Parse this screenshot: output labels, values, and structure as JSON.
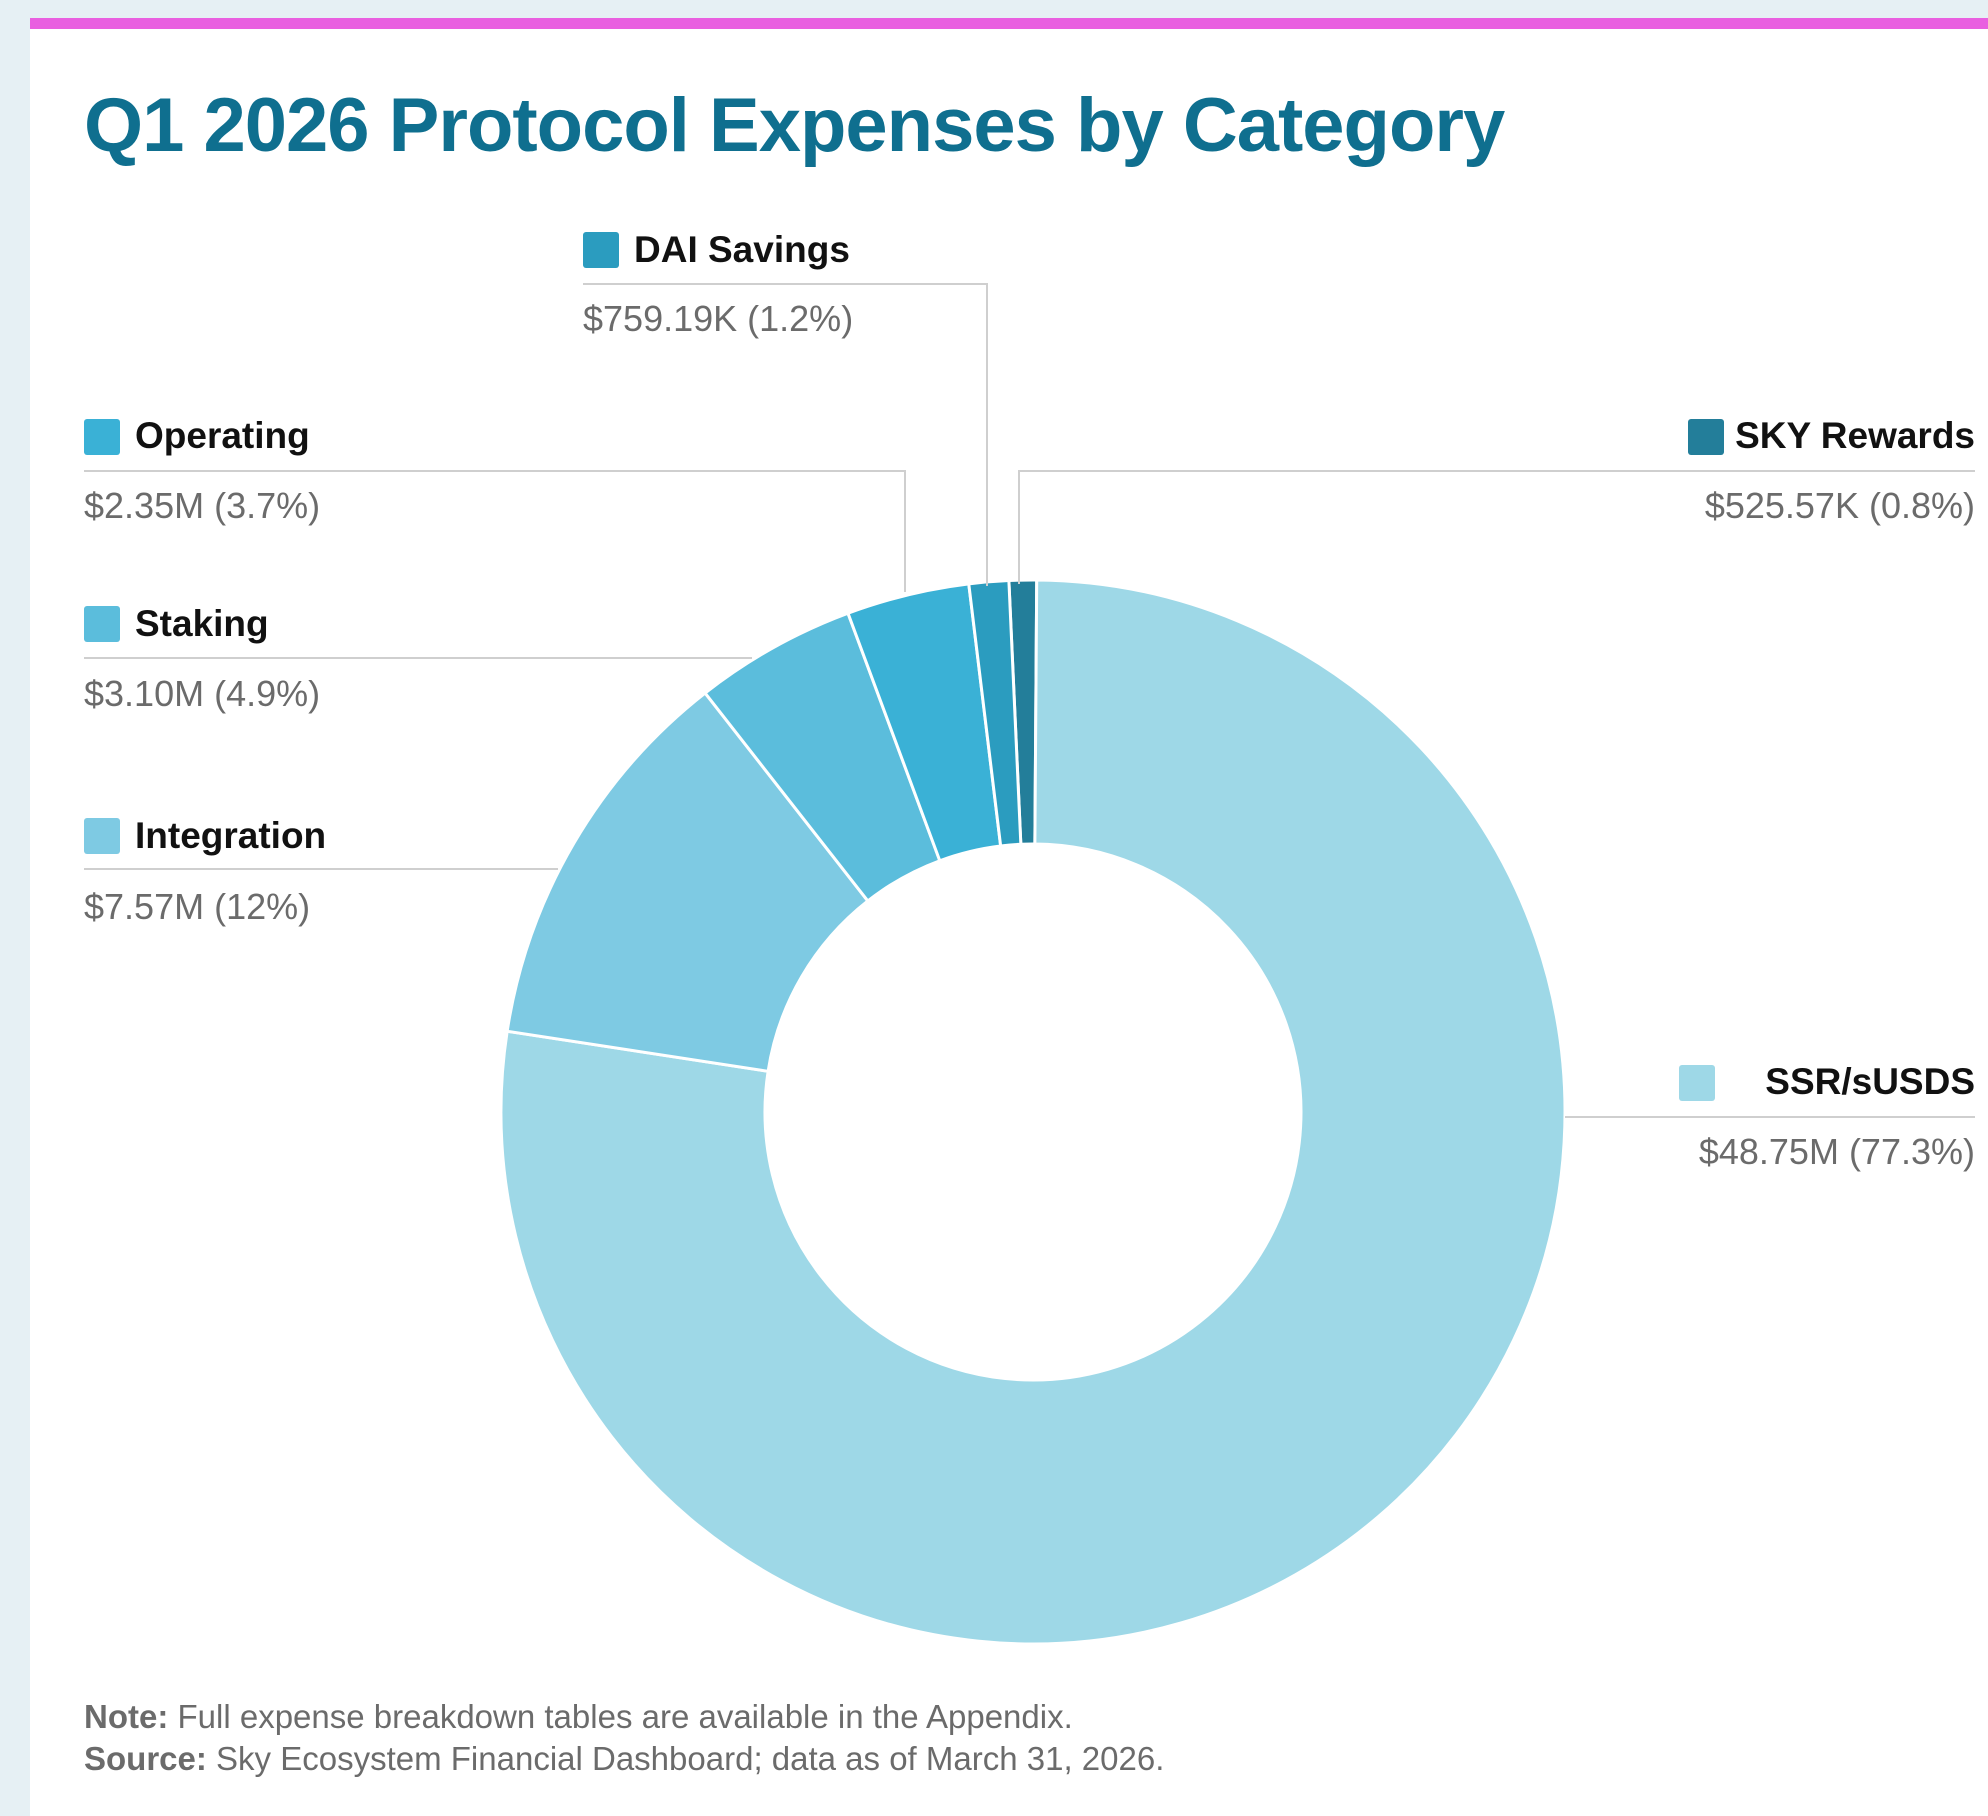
{
  "colors": {
    "accent_bar": "#e95fe0",
    "title": "#0f6f8f",
    "background": "#e6f0f4",
    "card": "#ffffff",
    "leader_line": "#cfcfcf",
    "label_text": "#111111",
    "value_text": "#6b6b6b"
  },
  "chart_data": {
    "type": "pie",
    "variant": "donut",
    "title": "Q1 2026 Protocol Expenses by Category",
    "total_label": "",
    "slices": [
      {
        "label": "SKY Rewards",
        "value": 525.57,
        "value_text": "$525.57K (0.8%)",
        "percent": 0.8,
        "color": "#237e9a"
      },
      {
        "label": "SSR/sUSDS",
        "value": 48750,
        "value_text": "$48.75M (77.3%)",
        "percent": 77.3,
        "color": "#9ed8e7"
      },
      {
        "label": "Integration",
        "value": 7570,
        "value_text": "$7.57M (12%)",
        "percent": 12,
        "color": "#7ecae3"
      },
      {
        "label": "Staking",
        "value": 3100,
        "value_text": "$3.10M (4.9%)",
        "percent": 4.9,
        "color": "#5bbddc"
      },
      {
        "label": "Operating",
        "value": 2350,
        "value_text": "$2.35M (3.7%)",
        "percent": 3.7,
        "color": "#3ab1d6"
      },
      {
        "label": "DAI Savings",
        "value": 759.19,
        "value_text": "$759.19K (1.2%)",
        "percent": 1.2,
        "color": "#2b9cbf"
      }
    ],
    "units_note": "values in thousands of USD",
    "legend": "callout labels around chart"
  },
  "notes": {
    "note_label": "Note:",
    "note_text": " Full expense breakdown tables are available in the Appendix.",
    "source_label": "Source:",
    "source_text": " Sky Ecosystem Financial Dashboard; data as of March 31, 2026."
  }
}
